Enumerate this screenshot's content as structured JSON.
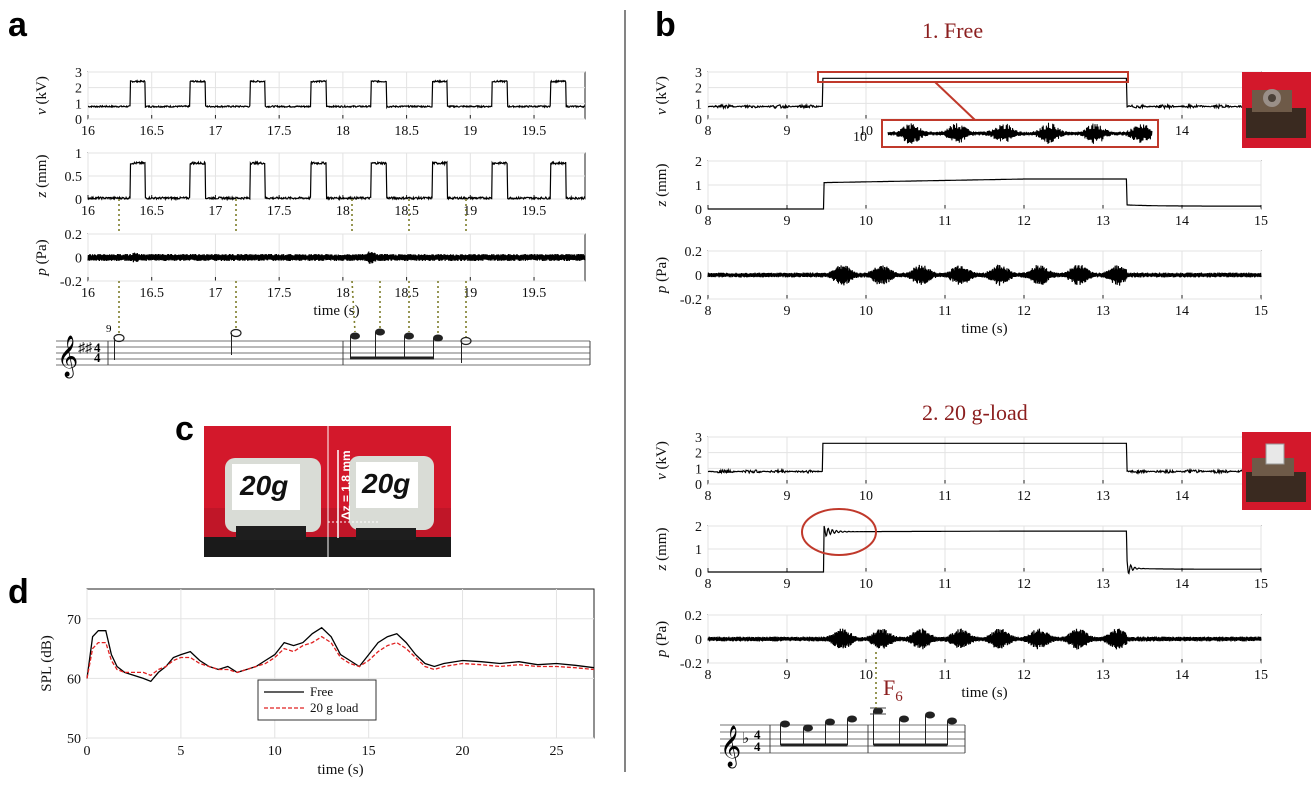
{
  "panels": {
    "a": "a",
    "b": "b",
    "c": "c",
    "d": "d"
  },
  "colors": {
    "trace": "#000000",
    "annotation_red": "#c0392b",
    "title_red": "#8b1e1e",
    "dotted_link": "#7d7d2a",
    "photo_red": "#d3182b",
    "sheet_paper": "#ffffff"
  },
  "panel_a": {
    "measure_number": "9",
    "charts": [
      {
        "id": "a-v",
        "type": "line",
        "ylabel": "v (kV)",
        "xlim": [
          16,
          19.9
        ],
        "ylim": [
          0,
          3
        ],
        "yticks": [
          "0",
          "1",
          "2",
          "3"
        ],
        "xticks": [
          "16",
          "16.5",
          "17",
          "17.5",
          "18",
          "18.5",
          "19",
          "19.5"
        ],
        "pulse_starts": [
          16.33,
          16.8,
          17.27,
          17.75,
          18.22,
          18.7,
          19.17,
          19.63
        ],
        "pulse_width": 0.12,
        "low_level": 0.8,
        "high_level": 2.4
      },
      {
        "id": "a-z",
        "type": "line",
        "ylabel": "z (mm)",
        "xlim": [
          16,
          19.9
        ],
        "ylim": [
          0,
          1
        ],
        "yticks": [
          "0",
          "0.5",
          "1"
        ],
        "xticks": [
          "16",
          "16.5",
          "17",
          "17.5",
          "18",
          "18.5",
          "19",
          "19.5"
        ],
        "pulse_starts": [
          16.33,
          16.8,
          17.27,
          17.75,
          18.22,
          18.7,
          19.17,
          19.63
        ],
        "pulse_width": 0.12,
        "low_level": 0.02,
        "high_level": 0.78
      },
      {
        "id": "a-p",
        "type": "line",
        "ylabel": "p (Pa)",
        "xlabel": "time (s)",
        "xlim": [
          16,
          19.9
        ],
        "ylim": [
          -0.2,
          0.2
        ],
        "yticks": [
          "-0.2",
          "0",
          "0.2"
        ],
        "xticks": [
          "16",
          "16.5",
          "17",
          "17.5",
          "18",
          "18.5",
          "19",
          "19.5"
        ],
        "noise_amplitude": 0.03,
        "bursts": [
          [
            16.37,
            0.05
          ],
          [
            17.3,
            0.03
          ],
          [
            18.22,
            0.065
          ],
          [
            18.7,
            0.035
          ],
          [
            19.17,
            0.03
          ]
        ]
      }
    ]
  },
  "panel_b": {
    "title_1": "1.   Free",
    "title_2": "2.   20 g-load",
    "f6_label": "F",
    "f6_sub": "6",
    "charts": [
      {
        "id": "b1-v",
        "type": "line",
        "ylabel": "v (kV)",
        "xlim": [
          8,
          15
        ],
        "ylim": [
          0,
          3
        ],
        "yticks": [
          "0",
          "1",
          "2",
          "3"
        ],
        "xticks": [
          "8",
          "9",
          "10",
          "14"
        ],
        "on": 9.45,
        "off": 13.3,
        "low_level": 0.8,
        "high_level": 2.6
      },
      {
        "id": "b1-z",
        "type": "line",
        "ylabel": "z (mm)",
        "xlim": [
          8,
          15
        ],
        "ylim": [
          0,
          2
        ],
        "yticks": [
          "0",
          "1",
          "2"
        ],
        "xticks": [
          "8",
          "9",
          "10",
          "11",
          "12",
          "13",
          "14",
          "15"
        ],
        "on": 9.47,
        "off": 13.3,
        "plateau_start": 1.1,
        "plateau_end": 1.25,
        "rest": 0.12
      },
      {
        "id": "b1-p",
        "type": "line",
        "ylabel": "p (Pa)",
        "xlabel": "time (s)",
        "xlim": [
          8,
          15
        ],
        "ylim": [
          -0.2,
          0.2
        ],
        "yticks": [
          "-0.2",
          "0",
          "0.2"
        ],
        "xticks": [
          "8",
          "9",
          "10",
          "11",
          "12",
          "13",
          "14",
          "15"
        ],
        "noise_amplitude": 0.02,
        "active": [
          9.45,
          13.3
        ],
        "burst_amplitude": 0.07
      },
      {
        "id": "b2-v",
        "type": "line",
        "ylabel": "v (kV)",
        "xlim": [
          8,
          15
        ],
        "ylim": [
          0,
          3
        ],
        "yticks": [
          "0",
          "1",
          "2",
          "3"
        ],
        "xticks": [
          "8",
          "9",
          "10",
          "11",
          "12",
          "13",
          "14"
        ],
        "on": 9.45,
        "off": 13.3,
        "low_level": 0.8,
        "high_level": 2.6
      },
      {
        "id": "b2-z",
        "type": "line",
        "ylabel": "z (mm)",
        "xlim": [
          8,
          15
        ],
        "ylim": [
          0,
          2
        ],
        "yticks": [
          "0",
          "1",
          "2"
        ],
        "xticks": [
          "8",
          "9",
          "10",
          "11",
          "12",
          "13",
          "14",
          "15"
        ],
        "on": 9.47,
        "off": 13.3,
        "plateau_start": 1.75,
        "plateau_end": 1.78,
        "rest": 0.12,
        "ringing": true
      },
      {
        "id": "b2-p",
        "type": "line",
        "ylabel": "p (Pa)",
        "xlabel": "time (s)",
        "xlim": [
          8,
          15
        ],
        "ylim": [
          -0.2,
          0.2
        ],
        "yticks": [
          "-0.2",
          "0",
          "0.2"
        ],
        "xticks": [
          "8",
          "9",
          "10",
          "11",
          "12",
          "13",
          "14",
          "15"
        ],
        "noise_amplitude": 0.02,
        "active": [
          9.45,
          13.3
        ],
        "burst_amplitude": 0.07
      }
    ]
  },
  "panel_c": {
    "label_left": "20g",
    "label_right": "20g",
    "dz_label": "Δz = 1.8 mm"
  },
  "panel_d": {
    "chart_data": {
      "type": "line",
      "ylabel": "SPL (dB)",
      "xlabel": "time (s)",
      "xlim": [
        0,
        27
      ],
      "ylim": [
        50,
        75
      ],
      "xticks": [
        "0",
        "5",
        "10",
        "15",
        "20",
        "25"
      ],
      "yticks": [
        "50",
        "60",
        "70"
      ],
      "grid": true,
      "legend_position": "center-bottom",
      "x": [
        0,
        0.3,
        0.6,
        1.0,
        1.3,
        1.6,
        2.0,
        2.5,
        3.0,
        3.4,
        3.8,
        4.2,
        4.6,
        5.0,
        5.5,
        6.0,
        6.5,
        7.0,
        7.5,
        8.0,
        8.5,
        9.0,
        9.5,
        10.0,
        10.5,
        11.0,
        11.5,
        12.0,
        12.5,
        13.0,
        13.5,
        14.0,
        14.5,
        15.0,
        15.5,
        16.0,
        16.5,
        17.0,
        17.5,
        18.0,
        18.5,
        19.0,
        20.0,
        21.0,
        22.0,
        23.0,
        24.0,
        25.0,
        26.0,
        27.0
      ],
      "series": [
        {
          "name": "Free",
          "style": "solid",
          "color": "#000000",
          "values": [
            60,
            67,
            68,
            68,
            64,
            62,
            61,
            60.5,
            60,
            59.5,
            61,
            62,
            63.5,
            64,
            64.5,
            63,
            62,
            61.5,
            62,
            61,
            61.5,
            62,
            63,
            64,
            66,
            65.5,
            66,
            67.5,
            68.5,
            67,
            64,
            63,
            62,
            64,
            66,
            67,
            67.5,
            66,
            64,
            62.5,
            62,
            62.5,
            63,
            62.8,
            62.5,
            62.8,
            62.3,
            62.5,
            62.2,
            61.8
          ]
        },
        {
          "name": "20 g load",
          "style": "dashed",
          "color": "#e02020",
          "values": [
            60,
            65,
            66,
            66,
            63,
            61.5,
            61,
            61,
            61,
            60.5,
            61.5,
            62,
            63,
            63.5,
            63.5,
            62.5,
            62,
            61.5,
            61.5,
            61,
            61.5,
            62,
            62.5,
            63.5,
            65,
            64.5,
            65.5,
            66,
            67,
            66,
            63.5,
            62.5,
            62,
            63,
            64.5,
            65.5,
            66,
            65,
            63.5,
            62,
            61.5,
            62,
            62.5,
            62.3,
            62,
            62.3,
            62,
            62,
            61.8,
            61.5
          ]
        }
      ]
    }
  }
}
